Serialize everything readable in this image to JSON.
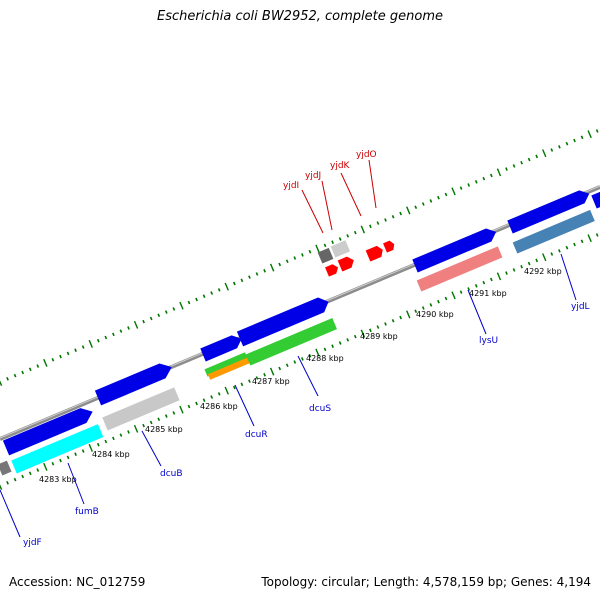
{
  "title": "Escherichia coli BW2952, complete genome",
  "footer": {
    "accession": "Accession: NC_012759",
    "topology": "Topology: circular; Length: 4,578,159 bp; Genes: 4,194"
  },
  "ticks": [
    {
      "label": "4283 kbp"
    },
    {
      "label": "4284 kbp"
    },
    {
      "label": "4285 kbp"
    },
    {
      "label": "4286 kbp"
    },
    {
      "label": "4287 kbp"
    },
    {
      "label": "4288 kbp"
    },
    {
      "label": "4289 kbp"
    },
    {
      "label": "4290 kbp"
    },
    {
      "label": "4291 kbp"
    },
    {
      "label": "4292 kbp"
    }
  ],
  "gene_labels": [
    {
      "name": "yjdF",
      "color": "#0000cc"
    },
    {
      "name": "fumB",
      "color": "#0000cc"
    },
    {
      "name": "dcuB",
      "color": "#0000cc"
    },
    {
      "name": "dcuR",
      "color": "#0000cc"
    },
    {
      "name": "dcuS",
      "color": "#0000cc"
    },
    {
      "name": "lysU",
      "color": "#0000cc"
    },
    {
      "name": "yjdL",
      "color": "#0000cc"
    },
    {
      "name": "yjdI",
      "color": "#cc0000"
    },
    {
      "name": "yjdJ",
      "color": "#cc0000"
    },
    {
      "name": "yjdK",
      "color": "#cc0000"
    },
    {
      "name": "yjdO",
      "color": "#cc0000"
    }
  ],
  "colors": {
    "backbone": "#8c8c8c",
    "forward_gene": "#0000e6",
    "rna_gene": "#ff0000",
    "fumB": "#00ffff",
    "dcuB": "#c8c8c8",
    "dcuS": "#33cc33",
    "lysU": "#f08080",
    "yjdL": "#4682b4",
    "dcuR_orange": "#ff9900",
    "tick_green": "#007700"
  }
}
